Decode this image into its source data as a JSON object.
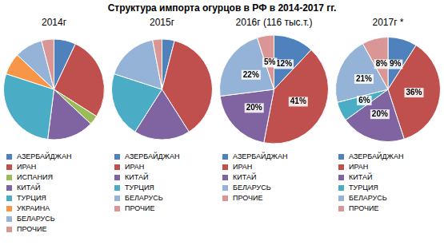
{
  "title": "Структура импорта огурцов в РФ в 2014-2017 гг.",
  "chart_data": [
    {
      "type": "pie",
      "title": "2014г",
      "categories": [
        "АЗЕРБАЙДЖАН",
        "ИРАН",
        "ИСПАНИЯ",
        "КИТАЙ",
        "ТУРЦИЯ",
        "УКРАИНА",
        "БЕЛАРУСЬ",
        "ПРОЧИЕ"
      ],
      "values": [
        7,
        27,
        3,
        15,
        28,
        7,
        9,
        4
      ],
      "colors": [
        "#4f81bd",
        "#c0504d",
        "#9bbb59",
        "#8064a2",
        "#4bacc6",
        "#f79646",
        "#95b3d7",
        "#d99694"
      ],
      "legend": "bottom",
      "data_labels": false
    },
    {
      "type": "pie",
      "title": "2015г",
      "categories": [
        "АЗЕРБАЙДЖАН",
        "ИРАН",
        "КИТАЙ",
        "ТУРЦИЯ",
        "БЕЛАРУСЬ",
        "ПРОЧИЕ"
      ],
      "values": [
        4,
        37,
        18,
        21,
        17,
        3
      ],
      "colors": [
        "#4f81bd",
        "#c0504d",
        "#8064a2",
        "#4bacc6",
        "#95b3d7",
        "#d99694"
      ],
      "legend": "bottom",
      "data_labels": false
    },
    {
      "type": "pie",
      "title": "2016г (116 тыс.т.)",
      "categories": [
        "АЗЕРБАЙДЖАН",
        "ИРАН",
        "КИТАЙ",
        "БЕЛАРУСЬ",
        "ПРОЧИЕ"
      ],
      "values": [
        12,
        41,
        20,
        22,
        5
      ],
      "value_labels": [
        "12%",
        "41%",
        "20%",
        "22%",
        "5%"
      ],
      "colors": [
        "#4f81bd",
        "#c0504d",
        "#8064a2",
        "#95b3d7",
        "#d99694"
      ],
      "legend": "bottom",
      "data_labels": true
    },
    {
      "type": "pie",
      "title": "2017г *",
      "categories": [
        "АЗЕРБАЙДЖАН",
        "ИРАН",
        "КИТАЙ",
        "ТУРЦИЯ",
        "БЕЛАРУСЬ",
        "ПРОЧИЕ"
      ],
      "values": [
        9,
        36,
        20,
        6,
        21,
        8
      ],
      "value_labels": [
        "9%",
        "36%",
        "20%",
        "6%",
        "21%",
        "8%"
      ],
      "colors": [
        "#4f81bd",
        "#c0504d",
        "#8064a2",
        "#4bacc6",
        "#95b3d7",
        "#d99694"
      ],
      "legend": "bottom",
      "data_labels": true
    }
  ]
}
